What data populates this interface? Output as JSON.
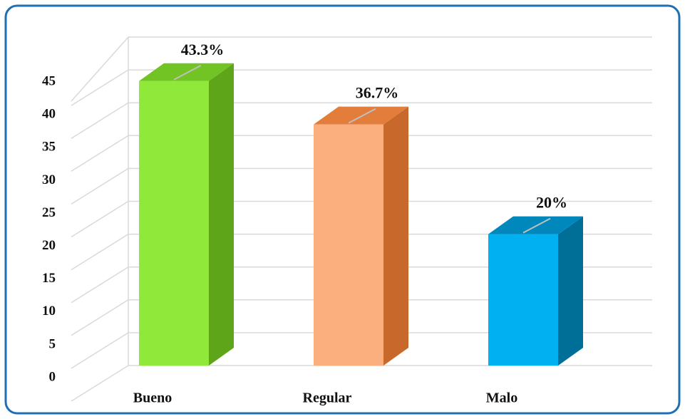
{
  "chart_data": {
    "type": "bar3d",
    "categories": [
      "Bueno",
      "Regular",
      "Malo"
    ],
    "values": [
      43.3,
      36.7,
      20
    ],
    "value_labels": [
      "43.3%",
      "36.7%",
      "20%"
    ],
    "colors": [
      {
        "front": "#8fe83a",
        "side": "#5ea51a",
        "top": "#71c424"
      },
      {
        "front": "#fbae7e",
        "side": "#c8682a",
        "top": "#e27d3c"
      },
      {
        "front": "#00b0f0",
        "side": "#006f98",
        "top": "#0088bd"
      }
    ],
    "ylim": [
      0,
      50
    ],
    "yticks": [
      0,
      5,
      10,
      15,
      20,
      25,
      30,
      35,
      40,
      45
    ],
    "grid": true
  }
}
